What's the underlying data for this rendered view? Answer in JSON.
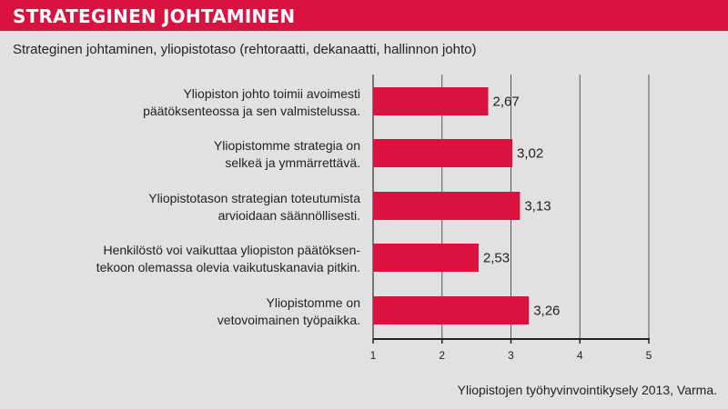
{
  "header": {
    "title": "STRATEGINEN JOHTAMINEN"
  },
  "subtitle": "Strateginen johtaminen, yliopistotaso (rehtoraatti, dekanaatti, hallinnon johto)",
  "source": "Yliopistojen työhyvinvointikysely 2013, Varma.",
  "colors": {
    "bar": "#d9123f",
    "header": "#d9123f",
    "background": "#e1e1e1"
  },
  "chart_data": {
    "type": "bar",
    "orientation": "horizontal",
    "categories": [
      [
        "Yliopiston johto toimii avoimesti",
        "päätöksenteossa ja sen valmistelussa."
      ],
      [
        "Yliopistomme strategia on",
        "selkeä ja ymmärrettävä."
      ],
      [
        "Yliopistotason strategian toteutumista",
        "arvioidaan säännöllisesti."
      ],
      [
        "Henkilöstö voi vaikuttaa yliopiston päätöksen-",
        "tekoon olemassa olevia vaikutuskanavia pitkin."
      ],
      [
        "Yliopistomme on",
        "vetovoimainen työpaikka."
      ]
    ],
    "values": [
      2.67,
      3.02,
      3.13,
      2.53,
      3.26
    ],
    "value_labels": [
      "2,67",
      "3,02",
      "3,13",
      "2,53",
      "3,26"
    ],
    "xlim": [
      1,
      5
    ],
    "xticks": [
      "1",
      "2",
      "3",
      "4",
      "5"
    ],
    "grid": true,
    "legend": "none"
  }
}
